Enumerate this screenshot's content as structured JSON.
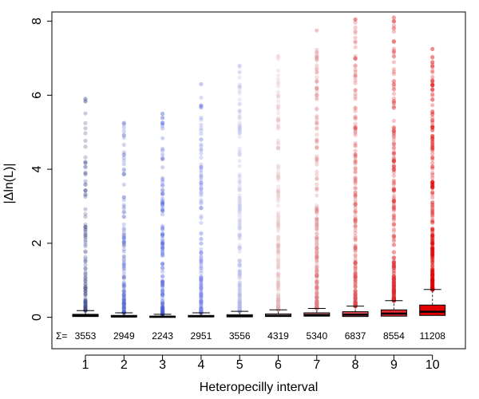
{
  "chart_data": {
    "type": "boxplot",
    "title": "",
    "xlabel": "Heteropecilly interval",
    "ylabel": "|Δln(L)|",
    "categories": [
      "1",
      "2",
      "3",
      "4",
      "5",
      "6",
      "7",
      "8",
      "9",
      "10"
    ],
    "ylim": [
      -0.85,
      8.25
    ],
    "yticks": [
      "0",
      "2",
      "4",
      "6",
      "8"
    ],
    "sum_symbol": "Σ=",
    "counts": [
      "3553",
      "2949",
      "2243",
      "2951",
      "3556",
      "4319",
      "5340",
      "6837",
      "8554",
      "11208"
    ],
    "colors": [
      "#3f4d8a",
      "#5a6bd0",
      "#4a62db",
      "#7986e6",
      "#b3b8ea",
      "#e6b3b8",
      "#e07d82",
      "#e04a50",
      "#e02a30",
      "#e00000"
    ],
    "boxes": [
      {
        "q1": 0.02,
        "median": 0.04,
        "q3": 0.08,
        "whisker_high": 0.18,
        "outlier_max": 5.9
      },
      {
        "q1": 0.01,
        "median": 0.02,
        "q3": 0.05,
        "whisker_high": 0.12,
        "outlier_max": 5.25
      },
      {
        "q1": 0.005,
        "median": 0.015,
        "q3": 0.03,
        "whisker_high": 0.08,
        "outlier_max": 5.5
      },
      {
        "q1": 0.01,
        "median": 0.025,
        "q3": 0.05,
        "whisker_high": 0.12,
        "outlier_max": 6.3
      },
      {
        "q1": 0.01,
        "median": 0.03,
        "q3": 0.07,
        "whisker_high": 0.16,
        "outlier_max": 6.8
      },
      {
        "q1": 0.02,
        "median": 0.04,
        "q3": 0.09,
        "whisker_high": 0.2,
        "outlier_max": 7.05
      },
      {
        "q1": 0.03,
        "median": 0.06,
        "q3": 0.12,
        "whisker_high": 0.24,
        "outlier_max": 7.75
      },
      {
        "q1": 0.02,
        "median": 0.07,
        "q3": 0.15,
        "whisker_high": 0.3,
        "outlier_max": 8.05
      },
      {
        "q1": 0.03,
        "median": 0.1,
        "q3": 0.2,
        "whisker_high": 0.45,
        "outlier_max": 8.1
      },
      {
        "q1": 0.05,
        "median": 0.15,
        "q3": 0.33,
        "whisker_high": 0.75,
        "outlier_max": 7.25
      }
    ]
  }
}
